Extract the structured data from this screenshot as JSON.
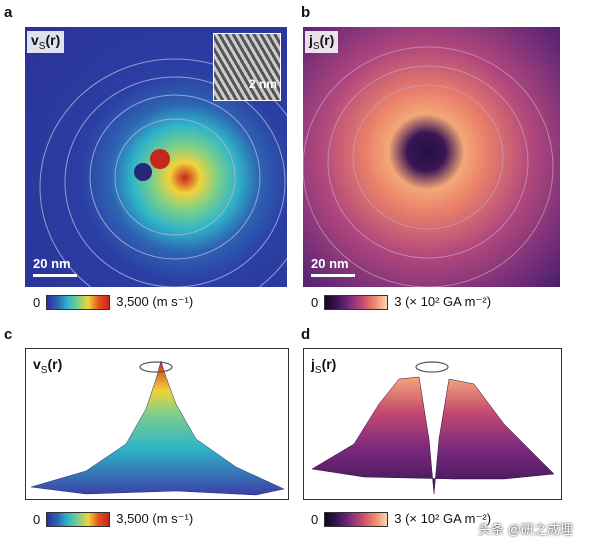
{
  "panels": {
    "a": {
      "letter": "a",
      "label_main": "v",
      "label_sub": "S",
      "label_arg": "(r)",
      "scale": "20 nm",
      "inset_scale": "2 nm",
      "cbar_min": "0",
      "cbar_max": "3,500 (m s⁻¹)"
    },
    "b": {
      "letter": "b",
      "label_main": "j",
      "label_sub": "S",
      "label_arg": "(r)",
      "scale": "20 nm",
      "cbar_min": "0",
      "cbar_max": "3 (× 10² GA m⁻²)"
    },
    "c": {
      "letter": "c",
      "label_main": "v",
      "label_sub": "S",
      "label_arg": "(r)",
      "cbar_min": "0",
      "cbar_max": "3,500 (m s⁻¹)"
    },
    "d": {
      "letter": "d",
      "label_main": "j",
      "label_sub": "S",
      "label_arg": "(r)",
      "cbar_min": "0",
      "cbar_max": "3 (× 10² GA m⁻²)"
    }
  },
  "watermark": "头条 @研之成理",
  "colors": {
    "jet_low": "#2b2f9a",
    "jet_mid": "#2fb5c8",
    "jet_hi": "#d8201c",
    "magma_low": "#1a0f3a",
    "magma_mid": "#b2487c",
    "magma_hi": "#f4a778"
  }
}
